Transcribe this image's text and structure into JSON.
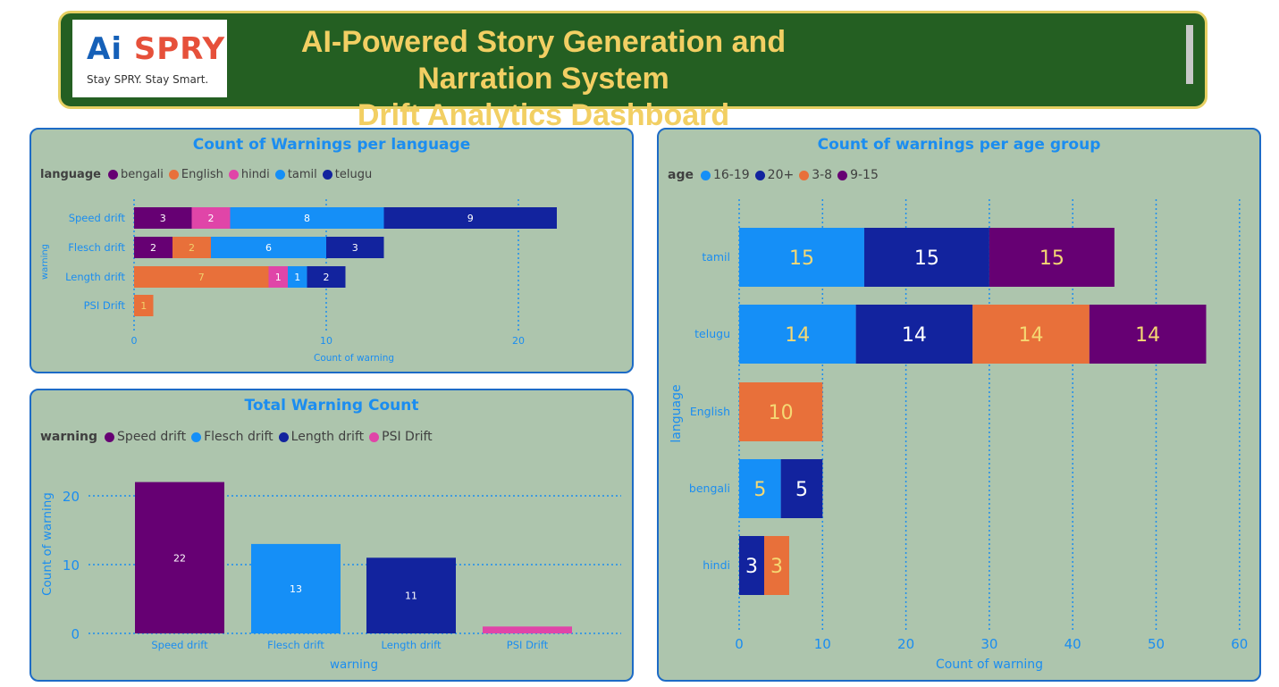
{
  "header": {
    "logo_word_a": "Ai",
    "logo_word_b": "SPRY",
    "logo_tagline": "Stay SPRY. Stay Smart.",
    "title_line1": "AI-Powered Story Generation and Narration System",
    "title_line2": "Drift Analytics Dashboard"
  },
  "colors": {
    "bengali": "#660073",
    "English": "#e8703a",
    "hindi": "#e045a8",
    "tamil": "#158ff7",
    "telugu": "#12239e",
    "panel_bg": "#adc5ad",
    "accent": "#1b8df0"
  },
  "chart_data": [
    {
      "id": "lang",
      "type": "bar",
      "orientation": "horizontal",
      "stacked": true,
      "title": "Count of Warnings per language",
      "legend_title": "language",
      "legend_position": "top-left",
      "xlabel": "Count of warning",
      "ylabel": "warning",
      "xlim": [
        0,
        24
      ],
      "xticks": [
        0,
        10,
        20
      ],
      "grid": true,
      "categories": [
        "Speed drift",
        "Flesch drift",
        "Length drift",
        "PSI Drift"
      ],
      "series": [
        {
          "name": "bengali",
          "color": "#660073",
          "values": [
            3,
            2,
            0,
            0
          ]
        },
        {
          "name": "English",
          "color": "#e8703a",
          "values": [
            0,
            2,
            7,
            1
          ]
        },
        {
          "name": "hindi",
          "color": "#e045a8",
          "values": [
            2,
            0,
            1,
            0
          ]
        },
        {
          "name": "tamil",
          "color": "#158ff7",
          "values": [
            8,
            6,
            1,
            0
          ]
        },
        {
          "name": "telugu",
          "color": "#12239e",
          "values": [
            9,
            3,
            2,
            0
          ]
        }
      ]
    },
    {
      "id": "total",
      "type": "bar",
      "orientation": "vertical",
      "title": "Total Warning Count",
      "legend_title": "warning",
      "legend_position": "top-left",
      "xlabel": "warning",
      "ylabel": "Count of warning",
      "ylim": [
        0,
        23
      ],
      "yticks": [
        0,
        10,
        20
      ],
      "grid": true,
      "categories": [
        "Speed drift",
        "Flesch drift",
        "Length drift",
        "PSI Drift"
      ],
      "values": [
        22,
        13,
        11,
        1
      ],
      "colors": [
        "#660073",
        "#158ff7",
        "#12239e",
        "#e045a8"
      ],
      "labels": [
        "22",
        "13",
        "11",
        ""
      ]
    },
    {
      "id": "age",
      "type": "bar",
      "orientation": "horizontal",
      "stacked": true,
      "title": "Count of warnings per age group",
      "legend_title": "age",
      "legend_position": "top-left",
      "xlabel": "Count of warning",
      "ylabel": "language",
      "xlim": [
        0,
        60
      ],
      "xticks": [
        0,
        10,
        20,
        30,
        40,
        50,
        60
      ],
      "grid": true,
      "categories": [
        "tamil",
        "telugu",
        "English",
        "bengali",
        "hindi"
      ],
      "series": [
        {
          "name": "16-19",
          "color": "#158ff7",
          "values": [
            15,
            14,
            0,
            5,
            0
          ]
        },
        {
          "name": "20+",
          "color": "#12239e",
          "values": [
            15,
            14,
            0,
            5,
            3
          ]
        },
        {
          "name": "3-8",
          "color": "#e8703a",
          "values": [
            0,
            14,
            10,
            0,
            3
          ]
        },
        {
          "name": "9-15",
          "color": "#660073",
          "values": [
            15,
            14,
            0,
            0,
            0
          ]
        }
      ]
    }
  ]
}
